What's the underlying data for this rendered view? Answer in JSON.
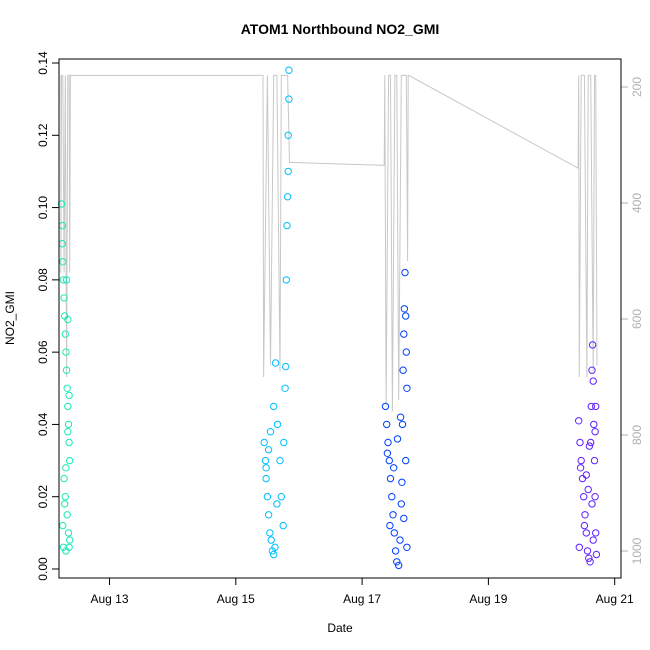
{
  "chart_data": {
    "type": "scatter",
    "title": "ATOM1 Northbound NO2_GMI",
    "xlabel": "Date",
    "ylabel": "NO2_GMI",
    "x_range_days": [
      12.2,
      21.1
    ],
    "x_tick_days": [
      13,
      15,
      17,
      19,
      21
    ],
    "x_tick_labels": [
      "Aug 13",
      "Aug 15",
      "Aug 17",
      "Aug 19",
      "Aug 21"
    ],
    "ylim": [
      0.0,
      0.14
    ],
    "y_ticks": [
      0.0,
      0.02,
      0.04,
      0.06,
      0.08,
      0.1,
      0.12,
      0.14
    ],
    "y_tick_labels": [
      "0.00",
      "0.02",
      "0.04",
      "0.06",
      "0.08",
      "0.10",
      "0.12",
      "0.14"
    ],
    "right_axis": {
      "label": "",
      "reversed": true,
      "range": [
        180,
        1030
      ],
      "ticks": [
        200,
        400,
        600,
        800,
        1000
      ],
      "tick_labels": [
        "200",
        "400",
        "600",
        "800",
        "1000"
      ],
      "color": "#b0b0b0"
    },
    "series": [
      {
        "color": "#1de9b6",
        "day_range": [
          12.23,
          12.38
        ],
        "points": [
          [
            12.24,
            0.101
          ],
          [
            12.25,
            0.095
          ],
          [
            12.25,
            0.09
          ],
          [
            12.26,
            0.085
          ],
          [
            12.27,
            0.08
          ],
          [
            12.28,
            0.075
          ],
          [
            12.29,
            0.07
          ],
          [
            12.3,
            0.065
          ],
          [
            12.31,
            0.06
          ],
          [
            12.32,
            0.055
          ],
          [
            12.33,
            0.05
          ],
          [
            12.34,
            0.045
          ],
          [
            12.35,
            0.04
          ],
          [
            12.36,
            0.035
          ],
          [
            12.37,
            0.03
          ],
          [
            12.28,
            0.025
          ],
          [
            12.3,
            0.02
          ],
          [
            12.33,
            0.015
          ],
          [
            12.35,
            0.01
          ],
          [
            12.37,
            0.008
          ],
          [
            12.26,
            0.012
          ],
          [
            12.29,
            0.018
          ],
          [
            12.31,
            0.028
          ],
          [
            12.34,
            0.038
          ],
          [
            12.36,
            0.048
          ],
          [
            12.32,
            0.08
          ],
          [
            12.34,
            0.069
          ],
          [
            12.27,
            0.006
          ],
          [
            12.31,
            0.005
          ],
          [
            12.36,
            0.006
          ]
        ]
      },
      {
        "color": "#00bfff",
        "day_range": [
          15.43,
          15.85
        ],
        "points": [
          [
            15.45,
            0.035
          ],
          [
            15.47,
            0.03
          ],
          [
            15.48,
            0.025
          ],
          [
            15.5,
            0.02
          ],
          [
            15.52,
            0.015
          ],
          [
            15.54,
            0.01
          ],
          [
            15.56,
            0.008
          ],
          [
            15.58,
            0.005
          ],
          [
            15.6,
            0.004
          ],
          [
            15.62,
            0.006
          ],
          [
            15.55,
            0.038
          ],
          [
            15.6,
            0.045
          ],
          [
            15.63,
            0.057
          ],
          [
            15.66,
            0.04
          ],
          [
            15.7,
            0.03
          ],
          [
            15.72,
            0.02
          ],
          [
            15.75,
            0.012
          ],
          [
            15.78,
            0.05
          ],
          [
            15.8,
            0.08
          ],
          [
            15.81,
            0.095
          ],
          [
            15.82,
            0.103
          ],
          [
            15.83,
            0.11
          ],
          [
            15.83,
            0.12
          ],
          [
            15.84,
            0.13
          ],
          [
            15.84,
            0.138
          ],
          [
            15.48,
            0.028
          ],
          [
            15.52,
            0.033
          ],
          [
            15.65,
            0.018
          ],
          [
            15.76,
            0.035
          ],
          [
            15.79,
            0.056
          ]
        ]
      },
      {
        "color": "#0040ff",
        "day_range": [
          17.35,
          17.72
        ],
        "points": [
          [
            17.37,
            0.045
          ],
          [
            17.39,
            0.04
          ],
          [
            17.41,
            0.035
          ],
          [
            17.43,
            0.03
          ],
          [
            17.45,
            0.025
          ],
          [
            17.47,
            0.02
          ],
          [
            17.49,
            0.015
          ],
          [
            17.51,
            0.01
          ],
          [
            17.53,
            0.005
          ],
          [
            17.55,
            0.002
          ],
          [
            17.58,
            0.001
          ],
          [
            17.6,
            0.008
          ],
          [
            17.62,
            0.018
          ],
          [
            17.64,
            0.04
          ],
          [
            17.65,
            0.055
          ],
          [
            17.66,
            0.065
          ],
          [
            17.67,
            0.072
          ],
          [
            17.68,
            0.082
          ],
          [
            17.69,
            0.07
          ],
          [
            17.7,
            0.06
          ],
          [
            17.71,
            0.05
          ],
          [
            17.4,
            0.032
          ],
          [
            17.44,
            0.012
          ],
          [
            17.5,
            0.028
          ],
          [
            17.56,
            0.036
          ],
          [
            17.61,
            0.042
          ],
          [
            17.63,
            0.024
          ],
          [
            17.66,
            0.014
          ],
          [
            17.69,
            0.03
          ],
          [
            17.71,
            0.006
          ]
        ]
      },
      {
        "color": "#6020ff",
        "day_range": [
          20.42,
          20.72
        ],
        "points": [
          [
            20.43,
            0.041
          ],
          [
            20.45,
            0.035
          ],
          [
            20.47,
            0.03
          ],
          [
            20.49,
            0.025
          ],
          [
            20.51,
            0.02
          ],
          [
            20.53,
            0.015
          ],
          [
            20.55,
            0.01
          ],
          [
            20.57,
            0.005
          ],
          [
            20.59,
            0.003
          ],
          [
            20.61,
            0.002
          ],
          [
            20.62,
            0.035
          ],
          [
            20.63,
            0.045
          ],
          [
            20.64,
            0.055
          ],
          [
            20.65,
            0.062
          ],
          [
            20.66,
            0.052
          ],
          [
            20.67,
            0.04
          ],
          [
            20.68,
            0.03
          ],
          [
            20.69,
            0.02
          ],
          [
            20.7,
            0.01
          ],
          [
            20.71,
            0.004
          ],
          [
            20.46,
            0.028
          ],
          [
            20.52,
            0.012
          ],
          [
            20.58,
            0.022
          ],
          [
            20.6,
            0.034
          ],
          [
            20.64,
            0.018
          ],
          [
            20.66,
            0.008
          ],
          [
            20.69,
            0.038
          ],
          [
            20.44,
            0.006
          ],
          [
            20.55,
            0.026
          ],
          [
            20.7,
            0.045
          ]
        ]
      }
    ],
    "altitude_series": {
      "color": "#c8c8c8",
      "points": [
        [
          12.23,
          180
        ],
        [
          12.23,
          520
        ],
        [
          12.24,
          180
        ],
        [
          12.26,
          180
        ],
        [
          12.28,
          520
        ],
        [
          12.3,
          180
        ],
        [
          12.32,
          700
        ],
        [
          12.34,
          180
        ],
        [
          12.36,
          180
        ],
        [
          12.37,
          520
        ],
        [
          12.38,
          180
        ],
        [
          15.43,
          180
        ],
        [
          15.44,
          700
        ],
        [
          15.5,
          180
        ],
        [
          15.55,
          680
        ],
        [
          15.6,
          180
        ],
        [
          15.65,
          180
        ],
        [
          15.7,
          690
        ],
        [
          15.72,
          180
        ],
        [
          15.78,
          180
        ],
        [
          15.8,
          180
        ],
        [
          15.82,
          180
        ],
        [
          15.85,
          330
        ],
        [
          17.35,
          335
        ],
        [
          17.36,
          180
        ],
        [
          17.38,
          750
        ],
        [
          17.42,
          180
        ],
        [
          17.45,
          180
        ],
        [
          17.48,
          760
        ],
        [
          17.52,
          180
        ],
        [
          17.55,
          180
        ],
        [
          17.58,
          740
        ],
        [
          17.62,
          180
        ],
        [
          17.66,
          180
        ],
        [
          17.7,
          180
        ],
        [
          17.72,
          500
        ],
        [
          17.73,
          180
        ],
        [
          17.74,
          180
        ],
        [
          20.42,
          340
        ],
        [
          20.43,
          180
        ],
        [
          20.44,
          700
        ],
        [
          20.47,
          180
        ],
        [
          20.52,
          180
        ],
        [
          20.56,
          700
        ],
        [
          20.58,
          180
        ],
        [
          20.62,
          180
        ],
        [
          20.66,
          690
        ],
        [
          20.68,
          180
        ],
        [
          20.7,
          180
        ],
        [
          20.72,
          680
        ]
      ]
    }
  }
}
